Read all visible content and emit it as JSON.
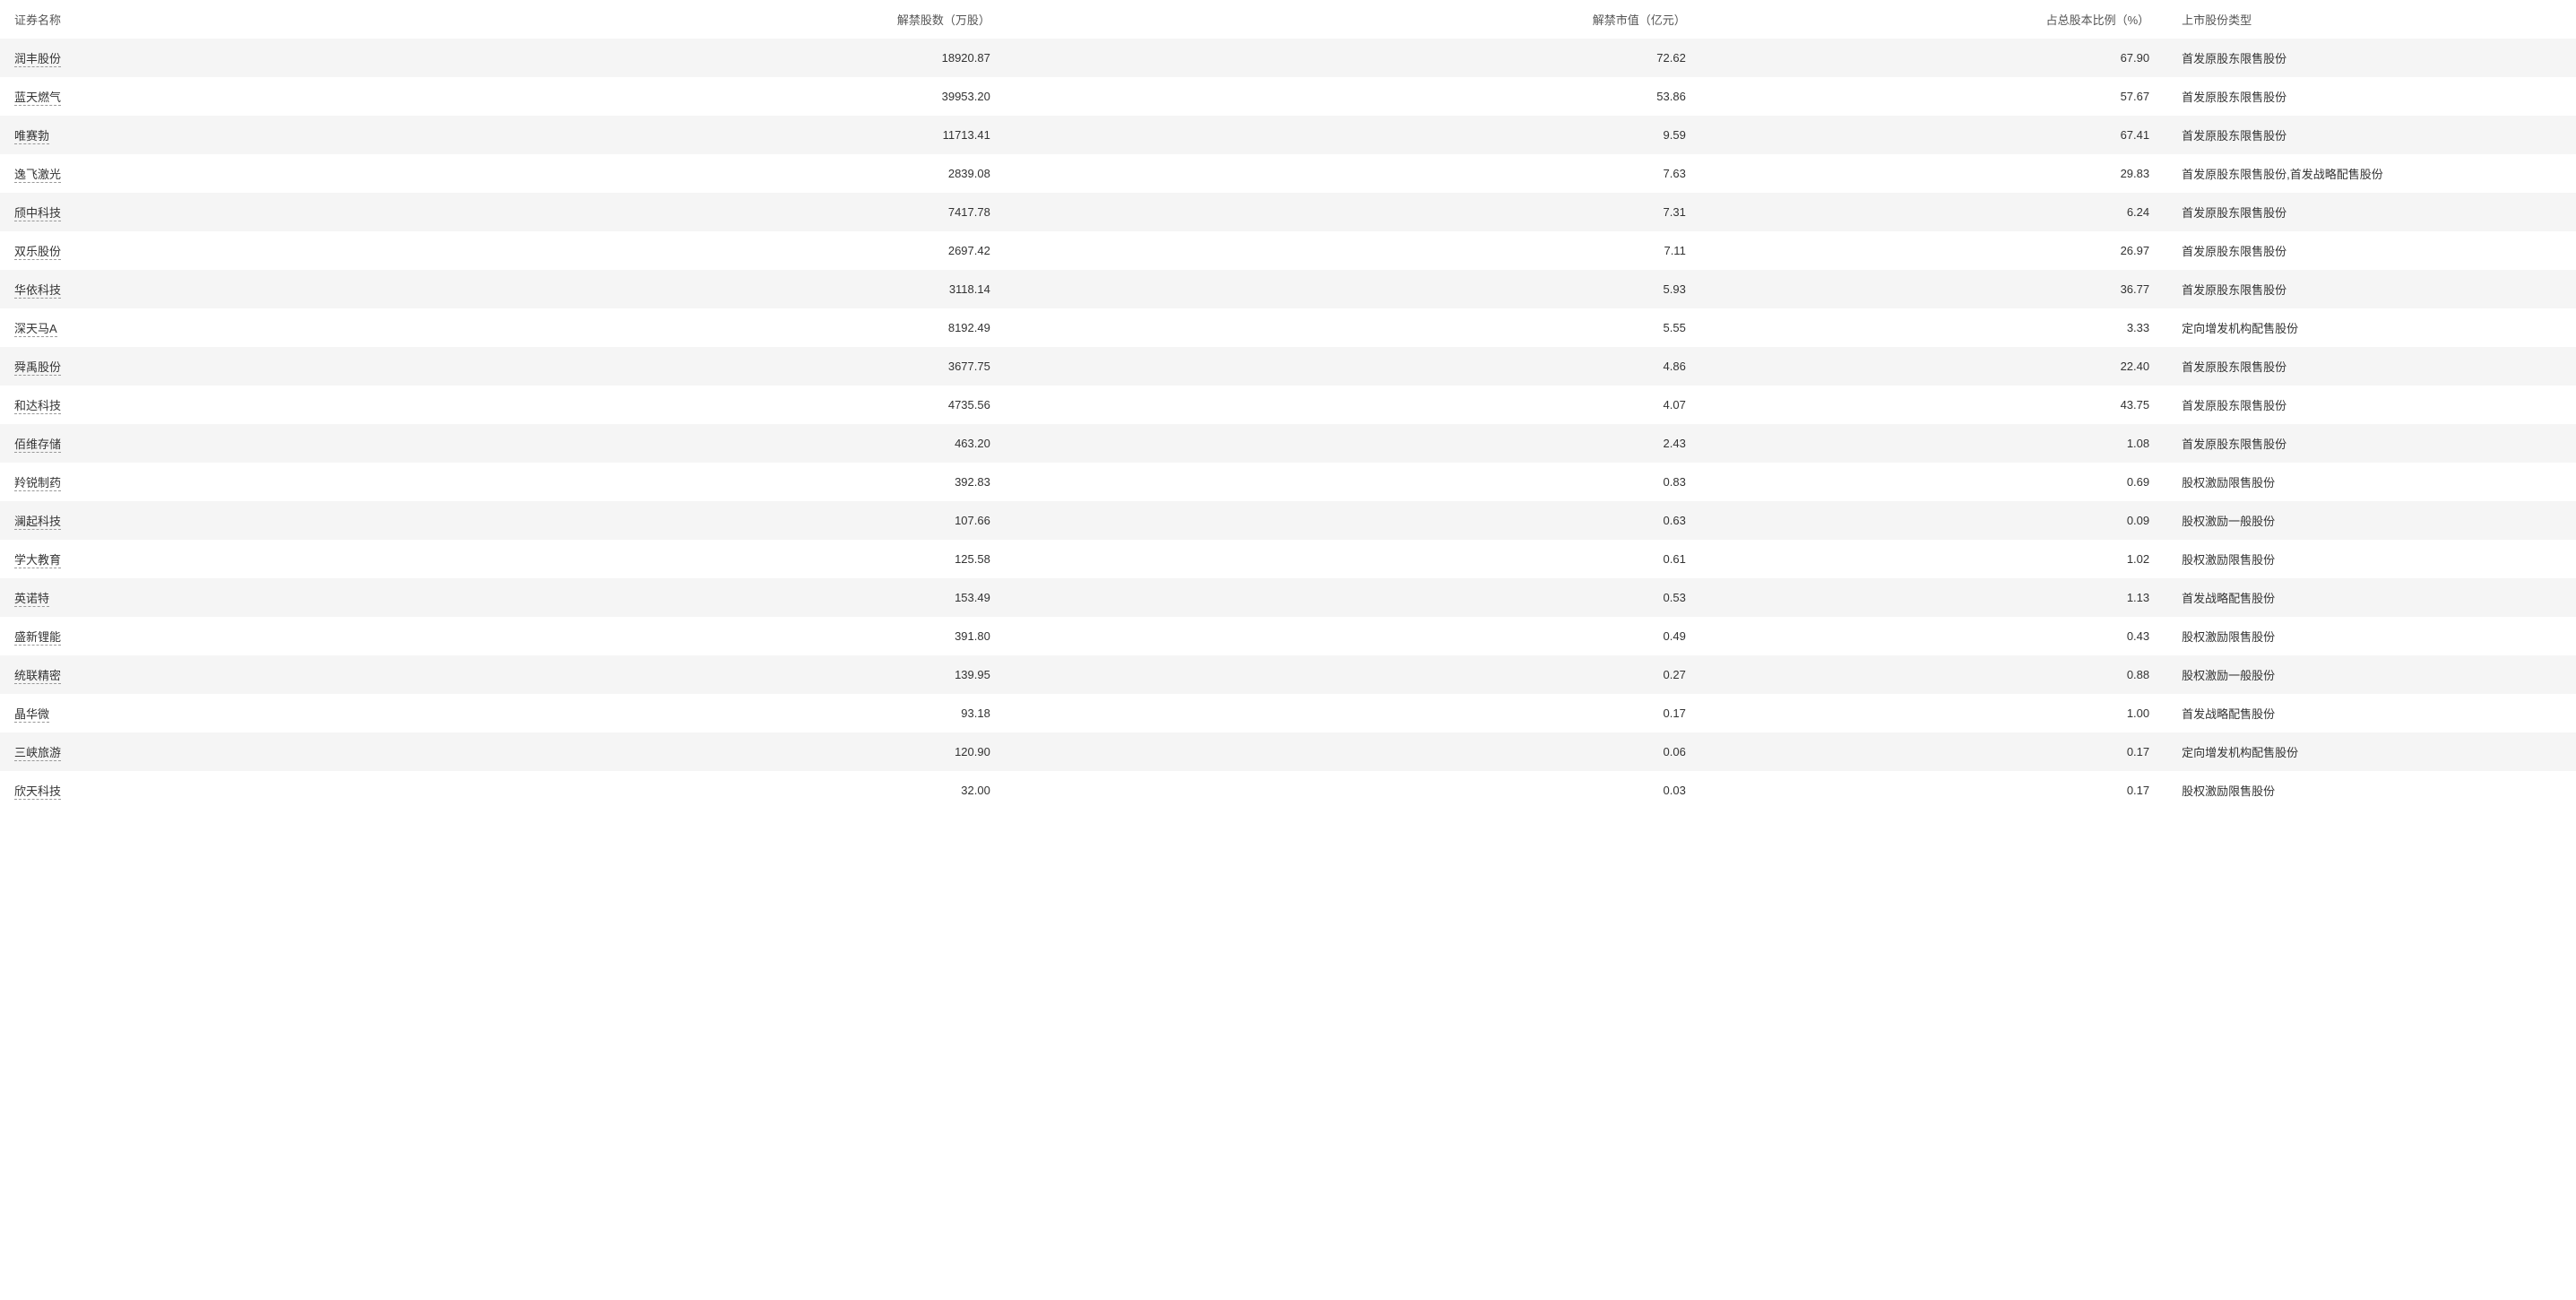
{
  "table": {
    "columns": {
      "name": "证券名称",
      "shares": "解禁股数（万股）",
      "value": "解禁市值（亿元）",
      "ratio": "占总股本比例（%）",
      "type": "上市股份类型"
    },
    "rows": [
      {
        "name": "润丰股份",
        "shares": "18920.87",
        "value": "72.62",
        "ratio": "67.90",
        "type": "首发原股东限售股份"
      },
      {
        "name": "蓝天燃气",
        "shares": "39953.20",
        "value": "53.86",
        "ratio": "57.67",
        "type": "首发原股东限售股份"
      },
      {
        "name": "唯赛勃",
        "shares": "11713.41",
        "value": "9.59",
        "ratio": "67.41",
        "type": "首发原股东限售股份"
      },
      {
        "name": "逸飞激光",
        "shares": "2839.08",
        "value": "7.63",
        "ratio": "29.83",
        "type": "首发原股东限售股份,首发战略配售股份"
      },
      {
        "name": "颀中科技",
        "shares": "7417.78",
        "value": "7.31",
        "ratio": "6.24",
        "type": "首发原股东限售股份"
      },
      {
        "name": "双乐股份",
        "shares": "2697.42",
        "value": "7.11",
        "ratio": "26.97",
        "type": "首发原股东限售股份"
      },
      {
        "name": "华依科技",
        "shares": "3118.14",
        "value": "5.93",
        "ratio": "36.77",
        "type": "首发原股东限售股份"
      },
      {
        "name": "深天马A",
        "shares": "8192.49",
        "value": "5.55",
        "ratio": "3.33",
        "type": "定向增发机构配售股份"
      },
      {
        "name": "舜禹股份",
        "shares": "3677.75",
        "value": "4.86",
        "ratio": "22.40",
        "type": "首发原股东限售股份"
      },
      {
        "name": "和达科技",
        "shares": "4735.56",
        "value": "4.07",
        "ratio": "43.75",
        "type": "首发原股东限售股份"
      },
      {
        "name": "佰维存储",
        "shares": "463.20",
        "value": "2.43",
        "ratio": "1.08",
        "type": "首发原股东限售股份"
      },
      {
        "name": "羚锐制药",
        "shares": "392.83",
        "value": "0.83",
        "ratio": "0.69",
        "type": "股权激励限售股份"
      },
      {
        "name": "澜起科技",
        "shares": "107.66",
        "value": "0.63",
        "ratio": "0.09",
        "type": "股权激励一般股份"
      },
      {
        "name": "学大教育",
        "shares": "125.58",
        "value": "0.61",
        "ratio": "1.02",
        "type": "股权激励限售股份"
      },
      {
        "name": "英诺特",
        "shares": "153.49",
        "value": "0.53",
        "ratio": "1.13",
        "type": "首发战略配售股份"
      },
      {
        "name": "盛新锂能",
        "shares": "391.80",
        "value": "0.49",
        "ratio": "0.43",
        "type": "股权激励限售股份"
      },
      {
        "name": "统联精密",
        "shares": "139.95",
        "value": "0.27",
        "ratio": "0.88",
        "type": "股权激励一般股份"
      },
      {
        "name": "晶华微",
        "shares": "93.18",
        "value": "0.17",
        "ratio": "1.00",
        "type": "首发战略配售股份"
      },
      {
        "name": "三峡旅游",
        "shares": "120.90",
        "value": "0.06",
        "ratio": "0.17",
        "type": "定向增发机构配售股份"
      },
      {
        "name": "欣天科技",
        "shares": "32.00",
        "value": "0.03",
        "ratio": "0.17",
        "type": "股权激励限售股份"
      }
    ]
  },
  "styling": {
    "row_odd_bg": "#f5f5f5",
    "row_even_bg": "#ffffff",
    "text_color": "#333333",
    "header_text_color": "#555555",
    "link_border_color": "#999999",
    "font_size": 13
  }
}
